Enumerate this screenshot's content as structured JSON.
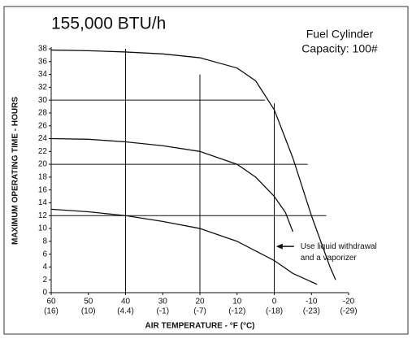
{
  "chart_data": {
    "type": "line",
    "title": "155,000 BTU/h",
    "subtitle": [
      "Fuel Cylinder",
      "Capacity: 100#"
    ],
    "x_label": "AIR TEMPERATURE - °F (°C)",
    "y_label": "MAXIMUM OPERATING TIME - HOURS",
    "xlim": [
      60,
      -20
    ],
    "ylim": [
      0,
      38
    ],
    "xticks": [
      60,
      50,
      40,
      30,
      20,
      10,
      0,
      -10,
      -20
    ],
    "xticks_celsius": [
      "(16)",
      "(10)",
      "(4.4)",
      "(-1)",
      "(-7)",
      "(-12)",
      "(-18)",
      "(-23)",
      "(-29)"
    ],
    "yticks": [
      0,
      2,
      4,
      6,
      8,
      10,
      12,
      14,
      16,
      18,
      20,
      22,
      24,
      26,
      28,
      30,
      32,
      34,
      36,
      38
    ],
    "grid": false,
    "series": [
      {
        "color": "#111111",
        "x": [
          60,
          50,
          40,
          30,
          20,
          10,
          5,
          0,
          -5,
          -10,
          -15,
          -16.5
        ],
        "values": [
          37.8,
          37.7,
          37.5,
          37.2,
          36.6,
          35,
          33,
          28.5,
          21,
          12,
          4,
          2
        ]
      },
      {
        "color": "#111111",
        "x": [
          60,
          50,
          40,
          30,
          20,
          10,
          5,
          0,
          -3,
          -5
        ],
        "values": [
          24,
          23.9,
          23.5,
          22.9,
          22,
          20,
          18,
          15,
          12.5,
          9.5
        ]
      },
      {
        "color": "#111111",
        "x": [
          60,
          50,
          40,
          30,
          20,
          10,
          0,
          -5,
          -11.5
        ],
        "values": [
          13,
          12.6,
          12,
          11.1,
          10,
          8,
          5,
          3,
          1.3
        ]
      }
    ],
    "vlines": [
      {
        "x": 40,
        "ymax": 38
      },
      {
        "x": 20,
        "ymax": 34
      },
      {
        "x": 0,
        "ymax": 29.5
      }
    ],
    "hlines": [
      {
        "y": 30,
        "xmax": 2.5
      },
      {
        "y": 20,
        "xmax": -9
      },
      {
        "y": 12,
        "xmax": -14
      }
    ],
    "annotation": {
      "text": [
        "Use liquid withdrawal",
        "and a vaporizer"
      ],
      "x": -0.5,
      "y": 7.2
    }
  }
}
